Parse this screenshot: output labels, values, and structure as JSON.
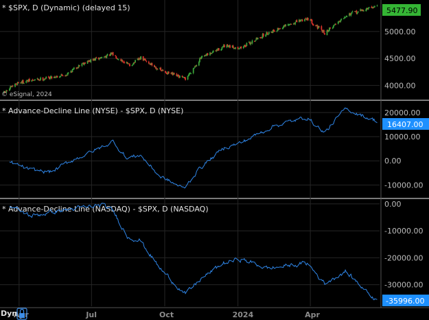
{
  "colors": {
    "background": "#000000",
    "separator": "#7a7a7a",
    "grid": "#262626",
    "up": "#3aa33a",
    "down": "#e0332b",
    "breadth": "#2f86e8",
    "price_badge": "#35b535",
    "breadth_badge": "#1e90ff"
  },
  "footer": {
    "mode_label": "Dyn",
    "lock_icon": "lock-icon"
  },
  "chart_data": [
    {
      "type": "candlestick",
      "title": "* $SPX, D (Dynamic) (delayed 15)",
      "watermark": "© eSignal, 2024",
      "ylim": [
        3750,
        5560
      ],
      "y_ticks": [
        4000,
        4500,
        5000
      ],
      "y_tick_labels": [
        "4000.00",
        "4500.00",
        "5000.00"
      ],
      "last_value_label": "5477.90",
      "anchors": [
        {
          "date": "2023-03-13",
          "value": 3860
        },
        {
          "date": "2023-03-30",
          "value": 4050
        },
        {
          "date": "2023-04-28",
          "value": 4120
        },
        {
          "date": "2023-05-30",
          "value": 4200
        },
        {
          "date": "2023-06-19",
          "value": 4410
        },
        {
          "date": "2023-07-27",
          "value": 4580
        },
        {
          "date": "2023-08-18",
          "value": 4370
        },
        {
          "date": "2023-09-01",
          "value": 4510
        },
        {
          "date": "2023-09-27",
          "value": 4270
        },
        {
          "date": "2023-10-27",
          "value": 4120
        },
        {
          "date": "2023-11-15",
          "value": 4500
        },
        {
          "date": "2023-12-14",
          "value": 4720
        },
        {
          "date": "2024-01-05",
          "value": 4700
        },
        {
          "date": "2024-02-08",
          "value": 4980
        },
        {
          "date": "2024-03-28",
          "value": 5250
        },
        {
          "date": "2024-04-19",
          "value": 4970
        },
        {
          "date": "2024-05-15",
          "value": 5300
        },
        {
          "date": "2024-06-24",
          "value": 5478
        }
      ]
    },
    {
      "type": "line",
      "title": "* Advance-Decline Line (NYSE) - $SPX, D (NYSE)",
      "ylim": [
        -15000,
        24500
      ],
      "y_ticks": [
        -10000,
        0,
        10000,
        20000
      ],
      "y_tick_labels": [
        "-10000.00",
        "0.00",
        "10000.00",
        "20000.00"
      ],
      "last_value_label": "16407.00",
      "anchors": [
        {
          "date": "2023-03-20",
          "value": -500
        },
        {
          "date": "2023-04-17",
          "value": -4000
        },
        {
          "date": "2023-05-12",
          "value": -4500
        },
        {
          "date": "2023-06-05",
          "value": 0
        },
        {
          "date": "2023-07-10",
          "value": 5000
        },
        {
          "date": "2023-07-28",
          "value": 8000
        },
        {
          "date": "2023-08-15",
          "value": 1000
        },
        {
          "date": "2023-08-31",
          "value": 2500
        },
        {
          "date": "2023-09-25",
          "value": -6500
        },
        {
          "date": "2023-10-25",
          "value": -11500
        },
        {
          "date": "2023-11-14",
          "value": -3000
        },
        {
          "date": "2023-12-15",
          "value": 5500
        },
        {
          "date": "2024-01-05",
          "value": 7500
        },
        {
          "date": "2024-02-15",
          "value": 14500
        },
        {
          "date": "2024-03-28",
          "value": 18000
        },
        {
          "date": "2024-04-19",
          "value": 11500
        },
        {
          "date": "2024-05-15",
          "value": 21500
        },
        {
          "date": "2024-06-24",
          "value": 16407
        }
      ]
    },
    {
      "type": "line",
      "title": "* Advance-Decline Line (NASDAQ) - $SPX, D (NASDAQ)",
      "ylim": [
        -38000,
        1500
      ],
      "y_ticks": [
        -30000,
        -20000,
        -10000,
        0
      ],
      "y_tick_labels": [
        "-30000.00",
        "-20000.00",
        "-10000.00",
        "0.00"
      ],
      "last_value_label": "-35996.00",
      "anchors": [
        {
          "date": "2023-03-20",
          "value": -1000
        },
        {
          "date": "2023-04-17",
          "value": -4500
        },
        {
          "date": "2023-05-12",
          "value": -3000
        },
        {
          "date": "2023-06-05",
          "value": -2000
        },
        {
          "date": "2023-07-14",
          "value": -500
        },
        {
          "date": "2023-07-28",
          "value": -2500
        },
        {
          "date": "2023-08-15",
          "value": -12000
        },
        {
          "date": "2023-08-31",
          "value": -13500
        },
        {
          "date": "2023-09-25",
          "value": -24000
        },
        {
          "date": "2023-10-27",
          "value": -33500
        },
        {
          "date": "2023-11-15",
          "value": -28000
        },
        {
          "date": "2023-12-14",
          "value": -22000
        },
        {
          "date": "2024-01-05",
          "value": -20500
        },
        {
          "date": "2024-02-08",
          "value": -24000
        },
        {
          "date": "2024-03-28",
          "value": -22000
        },
        {
          "date": "2024-04-19",
          "value": -29500
        },
        {
          "date": "2024-05-15",
          "value": -25000
        },
        {
          "date": "2024-06-24",
          "value": -35996
        }
      ]
    }
  ],
  "x_axis": {
    "xlim": [
      "2023-03-08",
      "2024-06-27"
    ],
    "ticks": [
      {
        "date": "2023-04-01",
        "label": "Apr"
      },
      {
        "date": "2023-07-01",
        "label": "Jul"
      },
      {
        "date": "2023-10-01",
        "label": "Oct"
      },
      {
        "date": "2024-01-01",
        "label": "2024"
      },
      {
        "date": "2024-04-01",
        "label": "Apr"
      }
    ]
  }
}
